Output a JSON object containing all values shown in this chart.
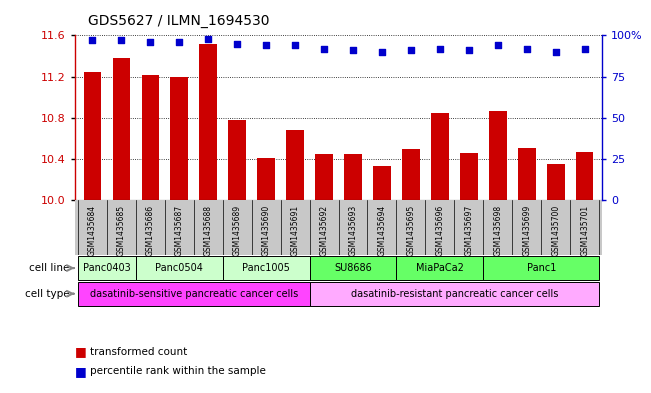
{
  "title": "GDS5627 / ILMN_1694530",
  "samples": [
    "GSM1435684",
    "GSM1435685",
    "GSM1435686",
    "GSM1435687",
    "GSM1435688",
    "GSM1435689",
    "GSM1435690",
    "GSM1435691",
    "GSM1435692",
    "GSM1435693",
    "GSM1435694",
    "GSM1435695",
    "GSM1435696",
    "GSM1435697",
    "GSM1435698",
    "GSM1435699",
    "GSM1435700",
    "GSM1435701"
  ],
  "bar_values": [
    11.24,
    11.38,
    11.22,
    11.2,
    11.52,
    10.78,
    10.41,
    10.68,
    10.45,
    10.45,
    10.33,
    10.5,
    10.85,
    10.46,
    10.87,
    10.51,
    10.35,
    10.47
  ],
  "percentile_values": [
    97,
    97,
    96,
    96,
    98,
    95,
    94,
    94,
    92,
    91,
    90,
    91,
    92,
    91,
    94,
    92,
    90,
    92
  ],
  "bar_color": "#cc0000",
  "percentile_color": "#0000cc",
  "ylim_left": [
    10,
    11.6
  ],
  "ylim_right": [
    0,
    100
  ],
  "yticks_left": [
    10,
    10.4,
    10.8,
    11.2,
    11.6
  ],
  "yticks_right": [
    0,
    25,
    50,
    75,
    100
  ],
  "ytick_labels_right": [
    "0",
    "25",
    "50",
    "75",
    "100%"
  ],
  "cell_lines": [
    {
      "name": "Panc0403",
      "start": 0,
      "end": 2,
      "color": "#ccffcc"
    },
    {
      "name": "Panc0504",
      "start": 2,
      "end": 5,
      "color": "#ccffcc"
    },
    {
      "name": "Panc1005",
      "start": 5,
      "end": 8,
      "color": "#ccffcc"
    },
    {
      "name": "SU8686",
      "start": 8,
      "end": 11,
      "color": "#66ff66"
    },
    {
      "name": "MiaPaCa2",
      "start": 11,
      "end": 14,
      "color": "#66ff66"
    },
    {
      "name": "Panc1",
      "start": 14,
      "end": 18,
      "color": "#66ff66"
    }
  ],
  "cell_types": [
    {
      "name": "dasatinib-sensitive pancreatic cancer cells",
      "start": 0,
      "end": 8,
      "color": "#ff44ff"
    },
    {
      "name": "dasatinib-resistant pancreatic cancer cells",
      "start": 8,
      "end": 18,
      "color": "#ffaaff"
    }
  ],
  "cell_line_label": "cell line",
  "cell_type_label": "cell type",
  "legend_bar": "transformed count",
  "legend_percentile": "percentile rank within the sample",
  "background_color": "#ffffff",
  "plot_bg_color": "#ffffff",
  "xtick_bg_color": "#c8c8c8",
  "grid_color": "#000000"
}
